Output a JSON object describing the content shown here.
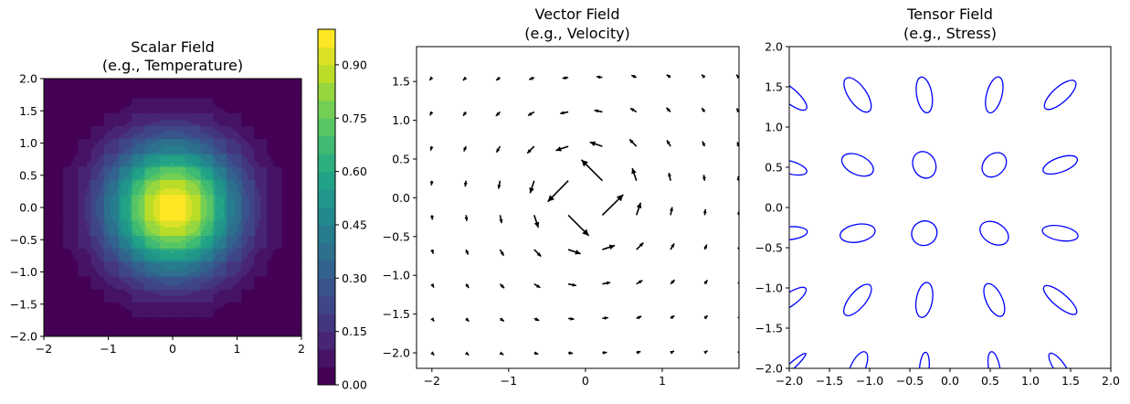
{
  "chart_data": [
    {
      "type": "heatmap",
      "title_line1": "Scalar Field",
      "title_line2": "(e.g., Temperature)",
      "xlabel": "",
      "ylabel": "",
      "xlim": [
        -2,
        2
      ],
      "ylim": [
        -2,
        2
      ],
      "xticks": [
        -2,
        -1,
        0,
        1,
        2
      ],
      "yticks": [
        -2.0,
        -1.5,
        -1.0,
        -0.5,
        0.0,
        0.5,
        1.0,
        1.5,
        2.0
      ],
      "xtick_labels": [
        "−2",
        "−1",
        "0",
        "1",
        "2"
      ],
      "ytick_labels": [
        "−2.0",
        "−1.5",
        "−1.0",
        "−0.5",
        "0.0",
        "0.5",
        "1.0",
        "1.5",
        "2.0"
      ],
      "function": "exp(-(x^2+y^2))",
      "grid_points": 20,
      "levels": [
        0.0,
        0.05,
        0.1,
        0.15,
        0.2,
        0.25,
        0.3,
        0.35,
        0.4,
        0.45,
        0.5,
        0.55,
        0.6,
        0.65,
        0.7,
        0.75,
        0.8,
        0.85,
        0.9,
        0.95,
        1.0
      ],
      "colormap": "viridis",
      "colorbar": {
        "ticks": [
          0.0,
          0.15,
          0.3,
          0.45,
          0.6,
          0.75,
          0.9
        ],
        "tick_labels": [
          "0.00",
          "0.15",
          "0.30",
          "0.45",
          "0.60",
          "0.75",
          "0.90"
        ]
      },
      "grid": false
    },
    {
      "type": "quiver",
      "title_line1": "Vector Field",
      "title_line2": "(e.g., Velocity)",
      "xlabel": "",
      "ylabel": "",
      "xlim": [
        -2.2,
        2.0
      ],
      "ylim": [
        -2.2,
        1.95
      ],
      "xticks": [
        -2,
        -1,
        0,
        1
      ],
      "yticks": [
        -2.0,
        -1.5,
        -1.0,
        -0.5,
        0.0,
        0.5,
        1.0,
        1.5
      ],
      "xtick_labels": [
        "−2",
        "−1",
        "0",
        "1"
      ],
      "ytick_labels": [
        "−2.0",
        "−1.5",
        "−1.0",
        "−0.5",
        "0.0",
        "0.5",
        "1.0",
        "1.5"
      ],
      "grid_x_start": -2.0,
      "grid_y_start": -2.0,
      "grid_step": 0.444,
      "grid_count": 10,
      "field": "u = -y/r^2, v = x/r^2",
      "arrow_color": "#000000",
      "grid": false
    },
    {
      "type": "ellipses",
      "title_line1": "Tensor Field",
      "title_line2": "(e.g., Stress)",
      "xlabel": "",
      "ylabel": "",
      "xlim": [
        -2.0,
        2.0
      ],
      "ylim": [
        -2.0,
        2.0
      ],
      "xticks": [
        -2.0,
        -1.5,
        -1.0,
        -0.5,
        0.0,
        0.5,
        1.0,
        1.5,
        2.0
      ],
      "yticks": [
        -2.0,
        -1.5,
        -1.0,
        -0.5,
        0.0,
        0.5,
        1.0,
        1.5,
        2.0
      ],
      "xtick_labels": [
        "−2.0",
        "−1.5",
        "−1.0",
        "−0.5",
        "0.0",
        "0.5",
        "1.0",
        "1.5",
        "2.0"
      ],
      "ytick_labels": [
        "−2.0",
        "−1.5",
        "−1.0",
        "−0.5",
        "0.0",
        "0.5",
        "1.0",
        "1.5",
        "2.0"
      ],
      "edge_color": "#0000ff",
      "ellipses": [
        {
          "x": -2.0,
          "y": 1.4,
          "w": 0.55,
          "h": 0.18,
          "angle": -40
        },
        {
          "x": -1.15,
          "y": 1.4,
          "w": 0.5,
          "h": 0.22,
          "angle": -55
        },
        {
          "x": -0.32,
          "y": 1.4,
          "w": 0.45,
          "h": 0.19,
          "angle": -80
        },
        {
          "x": 0.55,
          "y": 1.4,
          "w": 0.46,
          "h": 0.19,
          "angle": 75
        },
        {
          "x": 1.37,
          "y": 1.4,
          "w": 0.5,
          "h": 0.19,
          "angle": 42
        },
        {
          "x": -2.0,
          "y": 0.5,
          "w": 0.45,
          "h": 0.16,
          "angle": -15
        },
        {
          "x": -1.15,
          "y": 0.53,
          "w": 0.42,
          "h": 0.24,
          "angle": -25
        },
        {
          "x": -0.32,
          "y": 0.53,
          "w": 0.34,
          "h": 0.28,
          "angle": -65
        },
        {
          "x": 0.55,
          "y": 0.53,
          "w": 0.34,
          "h": 0.26,
          "angle": 45
        },
        {
          "x": 1.37,
          "y": 0.53,
          "w": 0.45,
          "h": 0.18,
          "angle": 20
        },
        {
          "x": -2.0,
          "y": -0.32,
          "w": 0.45,
          "h": 0.16,
          "angle": 5
        },
        {
          "x": -1.15,
          "y": -0.32,
          "w": 0.44,
          "h": 0.22,
          "angle": 10
        },
        {
          "x": -0.32,
          "y": -0.32,
          "w": 0.32,
          "h": 0.3,
          "angle": 30
        },
        {
          "x": 0.55,
          "y": -0.32,
          "w": 0.38,
          "h": 0.26,
          "angle": -30
        },
        {
          "x": 1.37,
          "y": -0.32,
          "w": 0.45,
          "h": 0.18,
          "angle": -10
        },
        {
          "x": -2.0,
          "y": -1.15,
          "w": 0.5,
          "h": 0.16,
          "angle": 35
        },
        {
          "x": -1.15,
          "y": -1.15,
          "w": 0.48,
          "h": 0.2,
          "angle": 50
        },
        {
          "x": -0.32,
          "y": -1.15,
          "w": 0.44,
          "h": 0.2,
          "angle": 80
        },
        {
          "x": 0.55,
          "y": -1.15,
          "w": 0.44,
          "h": 0.2,
          "angle": -65
        },
        {
          "x": 1.37,
          "y": -1.15,
          "w": 0.52,
          "h": 0.17,
          "angle": -40
        },
        {
          "x": -2.0,
          "y": -2.0,
          "w": 0.55,
          "h": 0.08,
          "angle": 42
        },
        {
          "x": -1.15,
          "y": -2.0,
          "w": 0.45,
          "h": 0.18,
          "angle": 65
        },
        {
          "x": -0.32,
          "y": -2.0,
          "w": 0.4,
          "h": 0.12,
          "angle": 85
        },
        {
          "x": 0.55,
          "y": -2.0,
          "w": 0.42,
          "h": 0.14,
          "angle": -80
        },
        {
          "x": 1.37,
          "y": -2.0,
          "w": 0.45,
          "h": 0.14,
          "angle": -55
        }
      ],
      "grid": false
    }
  ]
}
